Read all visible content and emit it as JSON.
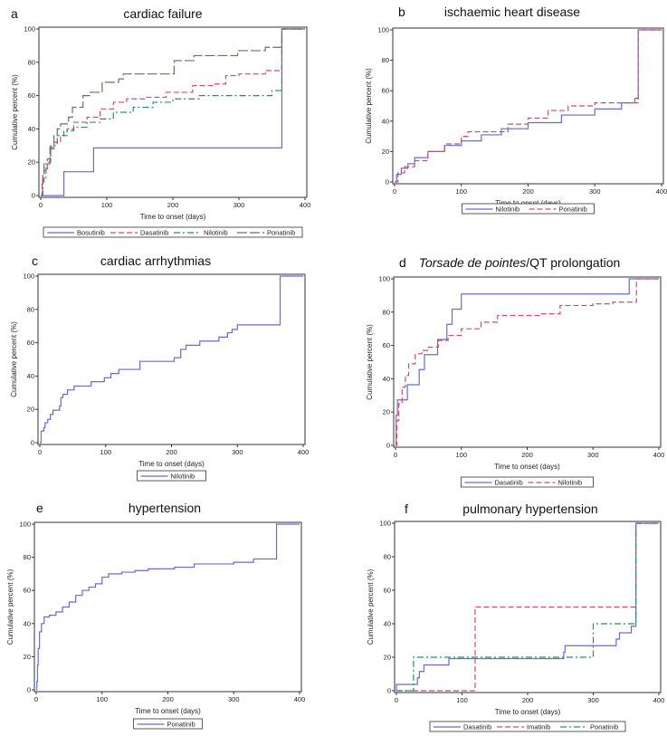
{
  "chart_data": [
    {
      "type": "line",
      "letter": "a",
      "title": "cardiac failure",
      "title_italic": "",
      "xlabel": "Time to onset (days)",
      "ylabel": "Cumulative percent (%)",
      "xlim": [
        0,
        400
      ],
      "ylim": [
        0,
        100
      ],
      "xticks": [
        "0",
        "100",
        "200",
        "300",
        "400"
      ],
      "yticks": [
        "0",
        "20",
        "40",
        "60",
        "80",
        "100"
      ],
      "legend_position": "bottom",
      "series": [
        {
          "name": "Bosutinib",
          "color": "#6a6ad0",
          "style": "solid",
          "points": [
            [
              0,
              0
            ],
            [
              35,
              14.3
            ],
            [
              80,
              28.6
            ],
            [
              365,
              100
            ],
            [
              400,
              100
            ]
          ]
        },
        {
          "name": "Dasatinib",
          "color": "#cc4f6e",
          "style": "dashed",
          "points": [
            [
              0,
              0
            ],
            [
              2,
              8
            ],
            [
              5,
              15
            ],
            [
              10,
              22
            ],
            [
              15,
              28
            ],
            [
              20,
              32
            ],
            [
              30,
              36
            ],
            [
              40,
              40
            ],
            [
              50,
              44
            ],
            [
              70,
              47
            ],
            [
              90,
              52
            ],
            [
              110,
              56
            ],
            [
              130,
              58
            ],
            [
              160,
              59
            ],
            [
              190,
              62
            ],
            [
              230,
              66
            ],
            [
              260,
              67
            ],
            [
              280,
              72
            ],
            [
              300,
              73
            ],
            [
              340,
              75
            ],
            [
              365,
              100
            ],
            [
              400,
              100
            ]
          ]
        },
        {
          "name": "Nilotinib",
          "color": "#2a8a7a",
          "style": "dashdot",
          "points": [
            [
              0,
              0
            ],
            [
              3,
              10
            ],
            [
              8,
              20
            ],
            [
              15,
              30
            ],
            [
              25,
              36
            ],
            [
              35,
              39
            ],
            [
              50,
              41
            ],
            [
              70,
              44
            ],
            [
              90,
              46
            ],
            [
              110,
              50
            ],
            [
              140,
              53
            ],
            [
              170,
              56
            ],
            [
              200,
              58
            ],
            [
              240,
              60
            ],
            [
              350,
              63
            ],
            [
              365,
              100
            ],
            [
              400,
              100
            ]
          ]
        },
        {
          "name": "Ponatinib",
          "color": "#6f6f5c",
          "style": "longdash",
          "points": [
            [
              0,
              0
            ],
            [
              3,
              12
            ],
            [
              5,
              19
            ],
            [
              14,
              29
            ],
            [
              20,
              36
            ],
            [
              25,
              40
            ],
            [
              30,
              43
            ],
            [
              42,
              47
            ],
            [
              48,
              53
            ],
            [
              64,
              60
            ],
            [
              75,
              62
            ],
            [
              93,
              68
            ],
            [
              118,
              70
            ],
            [
              125,
              73
            ],
            [
              202,
              81
            ],
            [
              232,
              84
            ],
            [
              298,
              87
            ],
            [
              340,
              89
            ],
            [
              365,
              100
            ],
            [
              400,
              100
            ]
          ]
        }
      ]
    },
    {
      "type": "line",
      "letter": "b",
      "title": "ischaemic heart disease",
      "title_italic": "",
      "xlabel": "Time to onset (days)",
      "ylabel": "Cumulative percent (%)",
      "xlim": [
        0,
        400
      ],
      "ylim": [
        0,
        100
      ],
      "xticks": [
        "0",
        "100",
        "200",
        "300",
        "400"
      ],
      "yticks": [
        "0",
        "20",
        "40",
        "60",
        "80",
        "100"
      ],
      "legend_position": "bottom",
      "series": [
        {
          "name": "Nilotinib",
          "color": "#6a6ad0",
          "style": "solid",
          "points": [
            [
              0,
              0
            ],
            [
              3,
              5
            ],
            [
              10,
              9
            ],
            [
              20,
              12
            ],
            [
              30,
              16
            ],
            [
              50,
              20
            ],
            [
              75,
              24
            ],
            [
              100,
              27
            ],
            [
              130,
              31
            ],
            [
              160,
              35
            ],
            [
              200,
              39
            ],
            [
              250,
              44
            ],
            [
              300,
              48
            ],
            [
              340,
              52
            ],
            [
              360,
              55
            ],
            [
              365,
              100
            ],
            [
              400,
              100
            ]
          ]
        },
        {
          "name": "Ponatinib",
          "color": "#cc4f6e",
          "style": "dashed",
          "points": [
            [
              0,
              0
            ],
            [
              5,
              6
            ],
            [
              15,
              10
            ],
            [
              30,
              14
            ],
            [
              50,
              20
            ],
            [
              75,
              25
            ],
            [
              100,
              30
            ],
            [
              110,
              33
            ],
            [
              170,
              38
            ],
            [
              200,
              42
            ],
            [
              230,
              47
            ],
            [
              260,
              50
            ],
            [
              300,
              52
            ],
            [
              365,
              100
            ],
            [
              400,
              100
            ]
          ]
        }
      ]
    },
    {
      "type": "line",
      "letter": "c",
      "title": "cardiac arrhythmias",
      "title_italic": "",
      "xlabel": "Time to onset (days)",
      "ylabel": "Cumulative percent (%)",
      "xlim": [
        0,
        400
      ],
      "ylim": [
        0,
        100
      ],
      "xticks": [
        "0",
        "100",
        "200",
        "300",
        "400"
      ],
      "yticks": [
        "0",
        "20",
        "40",
        "60",
        "80",
        "100"
      ],
      "legend_position": "bottom",
      "series": [
        {
          "name": "Nilotinib",
          "color": "#6a6ad0",
          "style": "solid",
          "points": [
            [
              0,
              0
            ],
            [
              2,
              7
            ],
            [
              6,
              9
            ],
            [
              8,
              12
            ],
            [
              12,
              14
            ],
            [
              16,
              17
            ],
            [
              20,
              19.5
            ],
            [
              30,
              22
            ],
            [
              32,
              27
            ],
            [
              35,
              29
            ],
            [
              42,
              31.7
            ],
            [
              52,
              34
            ],
            [
              78,
              36.6
            ],
            [
              98,
              39
            ],
            [
              108,
              41.5
            ],
            [
              120,
              44
            ],
            [
              152,
              48.8
            ],
            [
              204,
              51
            ],
            [
              214,
              56
            ],
            [
              222,
              58.5
            ],
            [
              243,
              61
            ],
            [
              272,
              63.4
            ],
            [
              285,
              66
            ],
            [
              292,
              68
            ],
            [
              300,
              70.7
            ],
            [
              365,
              100
            ],
            [
              400,
              100
            ]
          ]
        }
      ]
    },
    {
      "type": "line",
      "letter": "d",
      "title": "/QT prolongation",
      "title_italic": "Torsade de pointes",
      "xlabel": "Time to onset (days)",
      "ylabel": "Cumulative percent (%)",
      "xlim": [
        0,
        400
      ],
      "ylim": [
        0,
        100
      ],
      "xticks": [
        "0",
        "100",
        "200",
        "300",
        "400"
      ],
      "yticks": [
        "0",
        "20",
        "40",
        "60",
        "80",
        "100"
      ],
      "legend_position": "bottom",
      "series": [
        {
          "name": "Dasatinib",
          "color": "#6a6ad0",
          "style": "solid",
          "points": [
            [
              0,
              0
            ],
            [
              1,
              18
            ],
            [
              3,
              27.3
            ],
            [
              18,
              36.4
            ],
            [
              36,
              45.5
            ],
            [
              44,
              54.5
            ],
            [
              64,
              63.6
            ],
            [
              78,
              72.7
            ],
            [
              86,
              81.8
            ],
            [
              100,
              90.9
            ],
            [
              355,
              100
            ],
            [
              400,
              100
            ]
          ]
        },
        {
          "name": "Nilotinib",
          "color": "#cc4f6e",
          "style": "dashed",
          "points": [
            [
              0,
              0
            ],
            [
              2,
              15
            ],
            [
              5,
              25
            ],
            [
              10,
              35
            ],
            [
              15,
              42
            ],
            [
              20,
              49
            ],
            [
              30,
              55
            ],
            [
              40,
              57
            ],
            [
              50,
              59
            ],
            [
              65,
              63
            ],
            [
              80,
              66
            ],
            [
              100,
              70
            ],
            [
              130,
              74
            ],
            [
              155,
              78
            ],
            [
              220,
              79
            ],
            [
              250,
              84
            ],
            [
              300,
              85
            ],
            [
              330,
              86
            ],
            [
              366,
              100
            ],
            [
              400,
              100
            ]
          ]
        }
      ]
    },
    {
      "type": "line",
      "letter": "e",
      "title": "hypertension",
      "title_italic": "",
      "xlabel": "Time to onset (days)",
      "ylabel": "Cumulative percent (%)",
      "xlim": [
        0,
        400
      ],
      "ylim": [
        0,
        100
      ],
      "xticks": [
        "0",
        "100",
        "200",
        "300",
        "400"
      ],
      "yticks": [
        "0",
        "20",
        "40",
        "60",
        "80",
        "100"
      ],
      "legend_position": "bottom",
      "series": [
        {
          "name": "Ponatinib",
          "color": "#6a6ad0",
          "style": "solid",
          "points": [
            [
              0,
              0
            ],
            [
              1,
              5
            ],
            [
              2,
              15
            ],
            [
              3,
              25
            ],
            [
              5,
              35
            ],
            [
              8,
              40
            ],
            [
              12,
              44
            ],
            [
              20,
              45
            ],
            [
              30,
              47
            ],
            [
              40,
              50
            ],
            [
              50,
              53
            ],
            [
              60,
              57
            ],
            [
              70,
              60
            ],
            [
              80,
              62
            ],
            [
              90,
              64
            ],
            [
              100,
              68
            ],
            [
              110,
              70
            ],
            [
              130,
              71
            ],
            [
              150,
              72
            ],
            [
              170,
              73
            ],
            [
              210,
              74
            ],
            [
              240,
              76
            ],
            [
              300,
              77
            ],
            [
              330,
              79
            ],
            [
              365,
              100
            ],
            [
              400,
              100
            ]
          ]
        }
      ]
    },
    {
      "type": "line",
      "letter": "f",
      "title": "pulmonary hypertension",
      "title_italic": "",
      "xlabel": "Time to onset (days)",
      "ylabel": "Cumulative percent (%)",
      "xlim": [
        0,
        400
      ],
      "ylim": [
        0,
        100
      ],
      "xticks": [
        "0",
        "100",
        "200",
        "300",
        "400"
      ],
      "yticks": [
        "0",
        "20",
        "40",
        "60",
        "80",
        "100"
      ],
      "legend_position": "bottom",
      "series": [
        {
          "name": "Dasatinib",
          "color": "#6a6ad0",
          "style": "solid",
          "points": [
            [
              0,
              3.8
            ],
            [
              32,
              7.7
            ],
            [
              35,
              11.5
            ],
            [
              42,
              15.4
            ],
            [
              80,
              19.2
            ],
            [
              255,
              23
            ],
            [
              257,
              26.9
            ],
            [
              335,
              30.8
            ],
            [
              340,
              34.6
            ],
            [
              358,
              38.5
            ],
            [
              365,
              100
            ],
            [
              400,
              100
            ]
          ]
        },
        {
          "name": "Imatinib",
          "color": "#cc4f6e",
          "style": "dashed",
          "points": [
            [
              0,
              0
            ],
            [
              120,
              50
            ],
            [
              365,
              100
            ],
            [
              400,
              100
            ]
          ]
        },
        {
          "name": "Ponatinib",
          "color": "#2a8a7a",
          "style": "dashdot",
          "points": [
            [
              0,
              0
            ],
            [
              26,
              20
            ],
            [
              300,
              40
            ],
            [
              365,
              100
            ],
            [
              400,
              100
            ]
          ]
        }
      ]
    }
  ]
}
